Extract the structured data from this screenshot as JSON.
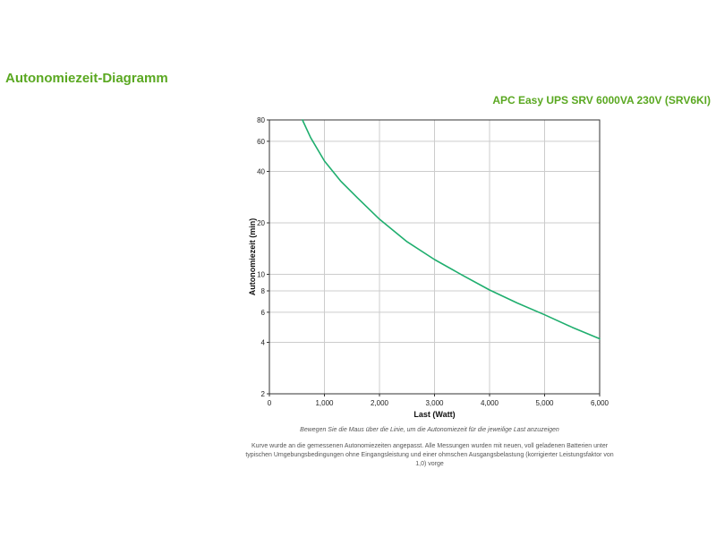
{
  "page": {
    "title": "Autonomiezeit-Diagramm",
    "product": "APC Easy UPS SRV 6000VA 230V (SRV6KI)",
    "hover_note": "Bewegen Sie die Maus über die Linie, um die Autonomiezeit für die jeweilige Last anzuzeigen",
    "description": "Kurve wurde an die gemessenen Autonomiezeiten angepasst. Alle Messungen wurden mit neuen, voll geladenen Batterien unter typischen Umgebungsbedingungen ohne Eingangsleistung und einer ohmschen Ausgangsbelastung (korrigierter Leistungsfaktor von 1,0) vorge"
  },
  "colors": {
    "accent": "#5aa821",
    "curve": "#1fae6e",
    "grid": "#cccccc",
    "axis": "#333333"
  },
  "chart_data": {
    "type": "line",
    "title": "",
    "xlabel": "Last (Watt)",
    "ylabel": "Autonomiezeit (min)",
    "xlim": [
      0,
      6000
    ],
    "ylim": [
      2,
      80
    ],
    "yscale": "log",
    "grid": true,
    "x_ticks": [
      0,
      1000,
      2000,
      3000,
      4000,
      5000,
      6000
    ],
    "x_tick_labels": [
      "0",
      "1,000",
      "2,000",
      "3,000",
      "4,000",
      "5,000",
      "6,000"
    ],
    "y_ticks": [
      2,
      4,
      6,
      8,
      10,
      20,
      40,
      60,
      80
    ],
    "y_tick_labels": [
      "2",
      "4",
      "6",
      "8",
      "10",
      "20",
      "40",
      "60",
      "80"
    ],
    "series": [
      {
        "x": [
          600,
          750,
          1000,
          1300,
          1600,
          2000,
          2500,
          3000,
          3500,
          4000,
          4500,
          5000,
          5500,
          6000
        ],
        "y": [
          80,
          63,
          46,
          35,
          28,
          21,
          15.5,
          12.2,
          9.9,
          8.1,
          6.8,
          5.8,
          4.9,
          4.2
        ]
      }
    ]
  }
}
